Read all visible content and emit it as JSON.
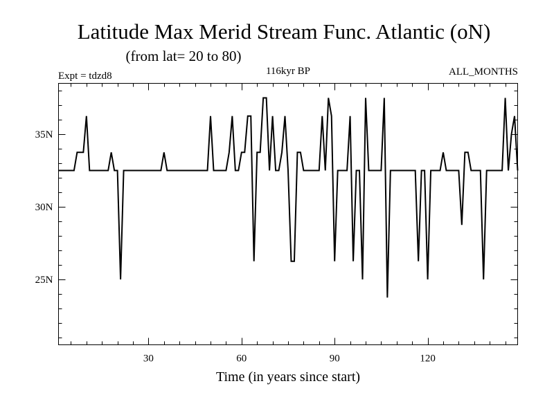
{
  "chart_data": {
    "type": "line",
    "title": "Latitude Max Merid Stream Func. Atlantic (oN)",
    "subtitle": "(from lat= 20 to 80)",
    "experiment_label": "Expt = tdzd8",
    "period_label": "116kyr BP",
    "months_label": "ALL_MONTHS",
    "xlabel": "Time (in years since start)",
    "ylabel": "",
    "xlim": [
      1,
      149
    ],
    "ylim": [
      20.5,
      38.5
    ],
    "xticks": [
      {
        "value": 30,
        "label": "30"
      },
      {
        "value": 60,
        "label": "60"
      },
      {
        "value": 90,
        "label": "90"
      },
      {
        "value": 120,
        "label": "120"
      }
    ],
    "yticks": [
      {
        "value": 25,
        "label": "25N"
      },
      {
        "value": 30,
        "label": "30N"
      },
      {
        "value": 35,
        "label": "35N"
      }
    ],
    "series": [
      {
        "name": "latitude of max meridional stream function",
        "x": [
          1,
          2,
          3,
          4,
          5,
          6,
          7,
          8,
          9,
          10,
          11,
          12,
          13,
          14,
          15,
          16,
          17,
          18,
          19,
          20,
          21,
          22,
          23,
          24,
          25,
          26,
          27,
          28,
          29,
          30,
          31,
          32,
          33,
          34,
          35,
          36,
          37,
          38,
          39,
          40,
          41,
          42,
          43,
          44,
          45,
          46,
          47,
          48,
          49,
          50,
          51,
          52,
          53,
          54,
          55,
          56,
          57,
          58,
          59,
          60,
          61,
          62,
          63,
          64,
          65,
          66,
          67,
          68,
          69,
          70,
          71,
          72,
          73,
          74,
          75,
          76,
          77,
          78,
          79,
          80,
          81,
          82,
          83,
          84,
          85,
          86,
          87,
          88,
          89,
          90,
          91,
          92,
          93,
          94,
          95,
          96,
          97,
          98,
          99,
          100,
          101,
          102,
          103,
          104,
          105,
          106,
          107,
          108,
          109,
          110,
          111,
          112,
          113,
          114,
          115,
          116,
          117,
          118,
          119,
          120,
          121,
          122,
          123,
          124,
          125,
          126,
          127,
          128,
          129,
          130,
          131,
          132,
          133,
          134,
          135,
          136,
          137,
          138,
          139,
          140,
          141,
          142,
          143,
          144,
          145,
          146,
          147,
          148,
          149
        ],
        "values": [
          32.5,
          32.5,
          32.5,
          32.5,
          32.5,
          32.5,
          33.75,
          33.75,
          33.75,
          36.25,
          32.5,
          32.5,
          32.5,
          32.5,
          32.5,
          32.5,
          32.5,
          33.75,
          32.5,
          32.5,
          25,
          32.5,
          32.5,
          32.5,
          32.5,
          32.5,
          32.5,
          32.5,
          32.5,
          32.5,
          32.5,
          32.5,
          32.5,
          32.5,
          33.75,
          32.5,
          32.5,
          32.5,
          32.5,
          32.5,
          32.5,
          32.5,
          32.5,
          32.5,
          32.5,
          32.5,
          32.5,
          32.5,
          32.5,
          36.25,
          32.5,
          32.5,
          32.5,
          32.5,
          32.5,
          33.75,
          36.25,
          32.5,
          32.5,
          33.75,
          33.75,
          36.25,
          36.25,
          26.25,
          33.75,
          33.75,
          37.5,
          37.5,
          32.5,
          36.25,
          32.5,
          32.5,
          33.75,
          36.25,
          32.5,
          26.25,
          26.25,
          33.75,
          33.75,
          32.5,
          32.5,
          32.5,
          32.5,
          32.5,
          32.5,
          36.25,
          32.5,
          37.5,
          36.25,
          26.25,
          32.5,
          32.5,
          32.5,
          32.5,
          36.25,
          26.25,
          32.5,
          32.5,
          25,
          37.5,
          32.5,
          32.5,
          32.5,
          32.5,
          32.5,
          37.5,
          23.75,
          32.5,
          32.5,
          32.5,
          32.5,
          32.5,
          32.5,
          32.5,
          32.5,
          32.5,
          26.25,
          32.5,
          32.5,
          25,
          32.5,
          32.5,
          32.5,
          32.5,
          33.75,
          32.5,
          32.5,
          32.5,
          32.5,
          32.5,
          28.75,
          33.75,
          33.75,
          32.5,
          32.5,
          32.5,
          32.5,
          25,
          32.5,
          32.5,
          32.5,
          32.5,
          32.5,
          32.5,
          37.5,
          32.5,
          35,
          36.25,
          32.5
        ]
      }
    ]
  }
}
